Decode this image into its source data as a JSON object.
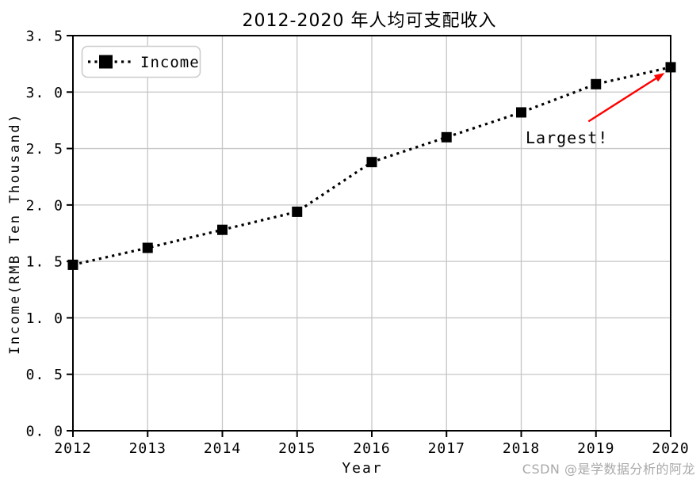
{
  "figure": {
    "watermark": "CSDN @是学数据分析的阿龙"
  },
  "chart_data": {
    "type": "line",
    "title": "2012-2020 年人均可支配收入",
    "xlabel": "Year",
    "ylabel": "Income(RMB Ten Thousand)",
    "categories": [
      2012,
      2013,
      2014,
      2015,
      2016,
      2017,
      2018,
      2019,
      2020
    ],
    "x_tick_labels": [
      "2012",
      "2013",
      "2014",
      "2015",
      "2016",
      "2017",
      "2018",
      "2019",
      "2020"
    ],
    "series": [
      {
        "name": "Income",
        "values": [
          1.47,
          1.62,
          1.78,
          1.94,
          2.38,
          2.6,
          2.82,
          3.07,
          3.22
        ],
        "color": "#000000",
        "line_style": "dotted",
        "marker": "square"
      }
    ],
    "xlim": [
      2012,
      2020
    ],
    "ylim": [
      0.0,
      3.5
    ],
    "y_ticks": [
      0.0,
      0.5,
      1.0,
      1.5,
      2.0,
      2.5,
      3.0,
      3.5
    ],
    "y_tick_labels": [
      "0. 0",
      "0. 5",
      "1. 0",
      "1. 5",
      "2. 0",
      "2. 5",
      "3. 0",
      "3. 5"
    ],
    "grid": true,
    "grid_color": "#c6c6c6",
    "legend": {
      "label": "Income",
      "position": "upper left"
    },
    "annotation": {
      "text": "Largest!",
      "color": "#ff0000",
      "target": {
        "x": 2020,
        "y": 3.22
      },
      "arrow": {
        "from": [
          2018.9,
          2.74
        ],
        "to": [
          2019.92,
          3.17
        ]
      }
    }
  }
}
